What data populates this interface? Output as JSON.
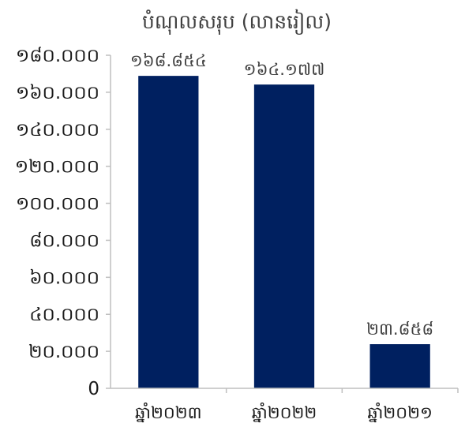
{
  "chart_data": {
    "type": "bar",
    "title": "បំណុលសរុប (លានរៀល)",
    "categories": [
      "ឆ្នាំ២០២៣",
      "ឆ្នាំ២០២២",
      "ឆ្នាំ២០២១"
    ],
    "values": [
      168854,
      164177,
      23858
    ],
    "value_labels": [
      "១៦៨.៨៥៤",
      "១៦៤.១៧៧",
      "២៣.៨៥៨"
    ],
    "ylim": [
      0,
      180000
    ],
    "yticks": [
      0,
      20000,
      40000,
      60000,
      80000,
      100000,
      120000,
      140000,
      160000,
      180000
    ],
    "ytick_labels": [
      "0",
      "២០.០០០",
      "៤០.០០០",
      "៦០.០០០",
      "៨០.០០០",
      "១០០.០០០",
      "១២០.០០០",
      "១៤០.០០០",
      "១៦០.០០០",
      "១៨០.០០០"
    ],
    "bar_color": "#002060",
    "grid": false,
    "legend": "none"
  }
}
